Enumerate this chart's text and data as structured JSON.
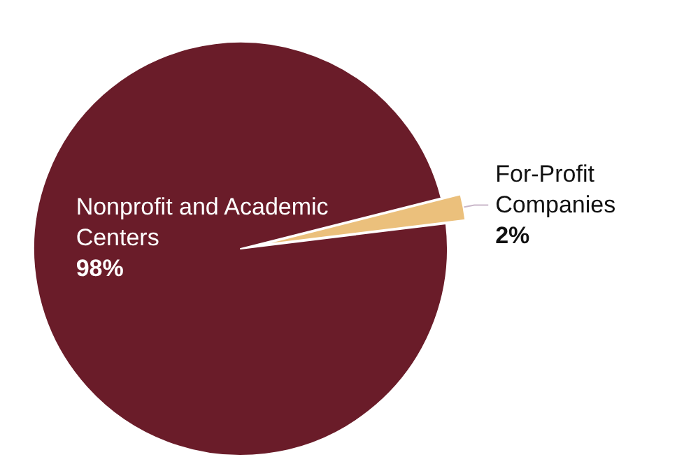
{
  "chart_data": {
    "type": "pie",
    "categories": [
      "Nonprofit and Academic Centers",
      "For-Profit Companies"
    ],
    "values": [
      98,
      2
    ],
    "colors": [
      "#6a1c29",
      "#ebc07c"
    ],
    "value_labels": [
      "98%",
      "2%"
    ],
    "legend": false
  }
}
